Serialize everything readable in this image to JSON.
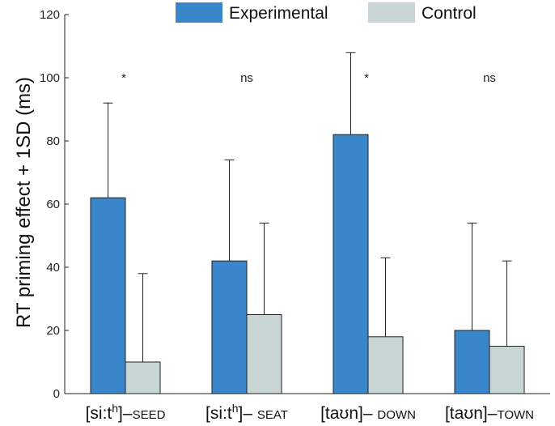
{
  "chart_data": {
    "type": "bar",
    "title": "",
    "xlabel": "",
    "ylabel": "RT priming effect + 1SD (ms)",
    "ylim": [
      0,
      120
    ],
    "yticks": [
      "0",
      "20",
      "40",
      "60",
      "80",
      "100",
      "120"
    ],
    "categories": [
      {
        "ipa": "[si:t",
        "sup": "h",
        "close": "]",
        "sep": "–",
        "word": "SEED"
      },
      {
        "ipa": "[si:t",
        "sup": "h",
        "close": "]",
        "sep": "– ",
        "word": "SEAT"
      },
      {
        "ipa": "[taʊn]",
        "sup": "",
        "close": "",
        "sep": "– ",
        "word": "DOWN"
      },
      {
        "ipa": "[taʊn]",
        "sup": "",
        "close": "",
        "sep": "–",
        "word": "TOWN"
      }
    ],
    "series": [
      {
        "name": "Experimental",
        "color": "#3a86cb",
        "values": [
          62,
          42,
          82,
          20
        ],
        "error_tops": [
          92,
          74,
          108,
          54
        ]
      },
      {
        "name": "Control",
        "color": "#c9d4d4",
        "values": [
          10,
          25,
          18,
          15
        ],
        "error_tops": [
          38,
          54,
          43,
          42
        ]
      }
    ],
    "significance": [
      "*",
      "ns",
      "*",
      "ns"
    ],
    "legend": {
      "placement": "top"
    }
  }
}
